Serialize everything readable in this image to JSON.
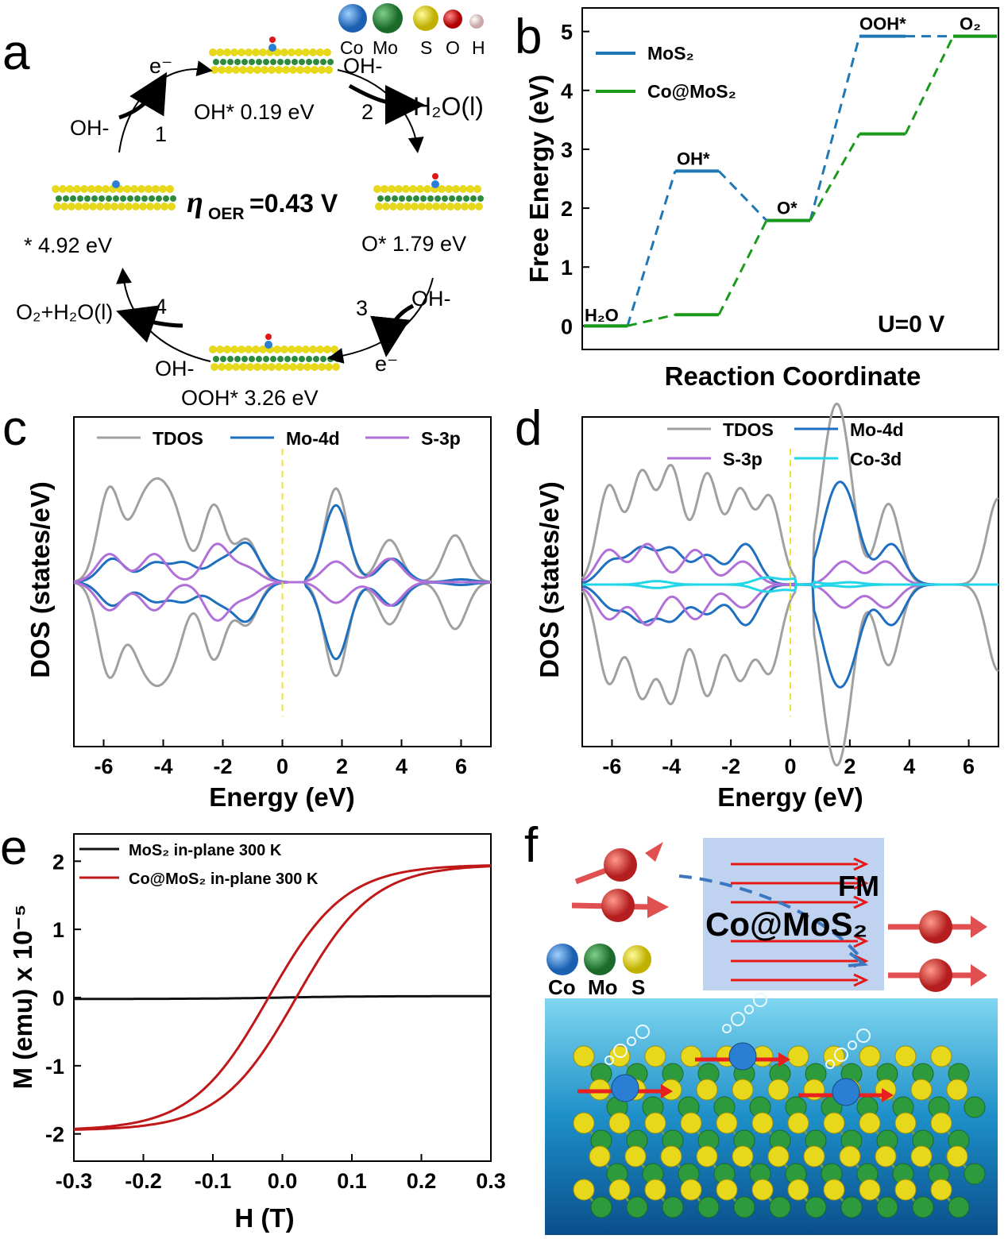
{
  "panels": {
    "a": "a",
    "b": "b",
    "c": "c",
    "d": "d",
    "e": "e",
    "f": "f"
  },
  "cycle": {
    "overpotential_symbol": "η",
    "overpotential_sub": "OER",
    "overpotential_value": "=0.43 V",
    "oh_state": "OH* 0.19 eV",
    "o_state": "O* 1.79 eV",
    "ooh_state": "OOH* 3.26 eV",
    "bare_state": "* 4.92 eV",
    "step1": "1",
    "step2": "2",
    "step3": "3",
    "step4": "4",
    "oh_minus": "OH-",
    "electron": "e⁻",
    "h2o_product": "H₂O(l)",
    "o2_product": "O₂+H₂O(l)",
    "legend_atoms": [
      "Co",
      "Mo",
      "S",
      "O",
      "H"
    ]
  },
  "atom_colors": {
    "Co": "#2a7fd4",
    "Mo": "#2e8b3e",
    "S": "#e8d81c",
    "O": "#e01515",
    "H": "#e8d0d0"
  },
  "chart_data": [
    {
      "panel": "b",
      "type": "line",
      "xlabel": "Reaction Coordinate",
      "ylabel": "Free Energy (eV)",
      "ylim": [
        -0.4,
        5.4
      ],
      "yticks": [
        0,
        1,
        2,
        3,
        4,
        5
      ],
      "grid": false,
      "legend_position": "top-left",
      "annotation": "U=0 V",
      "steps": [
        "H₂O",
        "OH*",
        "O*",
        "OOH*",
        "O₂"
      ],
      "series": [
        {
          "name": "MoS₂",
          "color": "#1f77b4",
          "values": [
            0,
            2.63,
            1.79,
            4.92,
            4.92
          ]
        },
        {
          "name": "Co@MoS₂",
          "color": "#1a9a1a",
          "values": [
            0,
            0.19,
            1.79,
            3.26,
            4.92
          ]
        }
      ]
    },
    {
      "panel": "c",
      "type": "line",
      "xlabel": "Energy (eV)",
      "ylabel": "DOS (states/eV)",
      "xlim": [
        -7,
        7
      ],
      "xticks": [
        -6,
        -4,
        -2,
        0,
        2,
        4,
        6
      ],
      "fermi_level": 0,
      "legend_position": "top",
      "series": [
        {
          "name": "TDOS",
          "color": "#a0a0a0",
          "peaks": [
            [
              -5.8,
              1.0
            ],
            [
              -4.8,
              0.62
            ],
            [
              -4.2,
              0.75
            ],
            [
              -3.6,
              0.62
            ],
            [
              -2.3,
              0.82
            ],
            [
              -1.2,
              0.45
            ],
            [
              1.8,
              1.0
            ],
            [
              3.6,
              0.45
            ],
            [
              5.8,
              0.5
            ]
          ]
        },
        {
          "name": "Mo-4d",
          "color": "#1f6fc0",
          "peaks": [
            [
              -5.7,
              0.25
            ],
            [
              -4.3,
              0.2
            ],
            [
              -3.3,
              0.2
            ],
            [
              -2.1,
              0.2
            ],
            [
              -1.2,
              0.4
            ],
            [
              1.8,
              0.82
            ],
            [
              3.7,
              0.25
            ],
            [
              6.0,
              0.03
            ]
          ]
        },
        {
          "name": "S-3p",
          "color": "#b070d8",
          "peaks": [
            [
              -5.8,
              0.3
            ],
            [
              -4.3,
              0.3
            ],
            [
              -2.2,
              0.4
            ],
            [
              -1.2,
              0.15
            ],
            [
              1.8,
              0.22
            ],
            [
              3.6,
              0.25
            ]
          ]
        }
      ]
    },
    {
      "panel": "d",
      "type": "line",
      "xlabel": "Energy (eV)",
      "ylabel": "DOS (states/eV)",
      "xlim": [
        -7,
        7
      ],
      "xticks": [
        -6,
        -4,
        -2,
        0,
        2,
        4,
        6
      ],
      "fermi_level": 0,
      "legend_position": "top",
      "series": [
        {
          "name": "TDOS",
          "color": "#a0a0a0",
          "peaks": [
            [
              -6.1,
              0.85
            ],
            [
              -5.0,
              0.95
            ],
            [
              -4.0,
              1.0
            ],
            [
              -2.8,
              0.95
            ],
            [
              -1.7,
              0.8
            ],
            [
              -0.7,
              0.75
            ],
            [
              1.3,
              0.95
            ],
            [
              1.8,
              1.0
            ],
            [
              3.3,
              0.7
            ],
            [
              7.0,
              0.75
            ]
          ]
        },
        {
          "name": "Mo-4d",
          "color": "#1f6fc0",
          "peaks": [
            [
              -6.0,
              0.2
            ],
            [
              -5.0,
              0.3
            ],
            [
              -4.0,
              0.3
            ],
            [
              -2.8,
              0.25
            ],
            [
              -1.5,
              0.35
            ],
            [
              1.4,
              0.6
            ],
            [
              2.0,
              0.55
            ],
            [
              3.4,
              0.35
            ]
          ]
        },
        {
          "name": "S-3p",
          "color": "#b070d8",
          "peaks": [
            [
              -6.1,
              0.3
            ],
            [
              -4.8,
              0.35
            ],
            [
              -3.2,
              0.3
            ],
            [
              -1.6,
              0.2
            ],
            [
              1.8,
              0.2
            ],
            [
              3.2,
              0.2
            ]
          ]
        },
        {
          "name": "Co-3d",
          "color": "#22d6e8",
          "peaks": [
            [
              -4.5,
              0.03
            ],
            [
              -0.8,
              0.06
            ],
            [
              0.3,
              0.05
            ],
            [
              2.0,
              0.02
            ]
          ]
        }
      ]
    },
    {
      "panel": "e",
      "type": "line",
      "xlabel": "H (T)",
      "ylabel": "M (emu) x 10⁻⁵",
      "xlim": [
        -0.3,
        0.3
      ],
      "ylim": [
        -2.4,
        2.4
      ],
      "xticks": [
        -0.3,
        -0.2,
        -0.1,
        0.0,
        0.1,
        0.2,
        0.3
      ],
      "yticks": [
        -2,
        -1,
        0,
        1,
        2
      ],
      "legend_position": "top-left",
      "series": [
        {
          "name": "MoS₂ in-plane 300 K",
          "color": "#111111",
          "saturation": 0.02,
          "coercivity": 0
        },
        {
          "name": "Co@MoS₂ in-plane 300 K",
          "color": "#c01818",
          "saturation": 1.95,
          "coercivity": 0.02
        }
      ]
    }
  ],
  "schematic": {
    "label_fm": "FM",
    "label_material": "Co@MoS₂",
    "legend_atoms": [
      "Co",
      "Mo",
      "S"
    ]
  }
}
